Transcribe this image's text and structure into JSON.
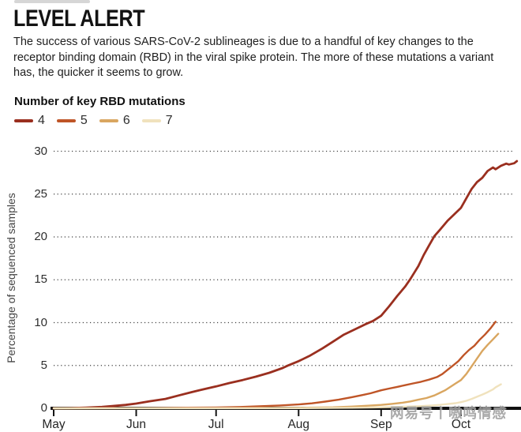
{
  "page": {
    "background": "#ffffff"
  },
  "header": {
    "title": "LEVEL ALERT",
    "subtitle": "The success of various SARS-CoV-2 sublineages is due to a handful of key changes to the receptor binding domain (RBD) in the viral spike protein. The more of these mutations a variant has, the quicker it seems to grow."
  },
  "legend": {
    "title": "Number of key RBD mutations",
    "items": [
      {
        "label": "4",
        "color": "#9a2f1f"
      },
      {
        "label": "5",
        "color": "#bf5527"
      },
      {
        "label": "6",
        "color": "#d9a660"
      },
      {
        "label": "7",
        "color": "#f0e2bd"
      }
    ]
  },
  "watermark": {
    "text": "网易号丨嗷鸣情感"
  },
  "chart_data": {
    "type": "line",
    "title": "LEVEL ALERT",
    "xlabel": "",
    "ylabel": "Percentage of sequenced samples",
    "x_unit": "days since 1 May",
    "xlim": [
      0,
      175
    ],
    "ylim": [
      0,
      30
    ],
    "grid": "dotted horizontal gridlines",
    "legend_position": "top-left above plot",
    "x_ticks": {
      "days": [
        0,
        31,
        61,
        92,
        123,
        153
      ],
      "labels": [
        "May",
        "Jun",
        "Jul",
        "Aug",
        "Sep",
        "Oct"
      ]
    },
    "y_ticks": [
      0,
      5,
      10,
      15,
      20,
      25,
      30
    ],
    "axis_color": "#101010",
    "series": [
      {
        "name": "4",
        "color": "#9a2f1f",
        "points": [
          [
            0,
            0
          ],
          [
            6,
            0.02
          ],
          [
            12,
            0.07
          ],
          [
            18,
            0.16
          ],
          [
            22,
            0.26
          ],
          [
            27,
            0.4
          ],
          [
            31,
            0.55
          ],
          [
            36,
            0.82
          ],
          [
            42,
            1.1
          ],
          [
            47,
            1.5
          ],
          [
            52,
            1.9
          ],
          [
            56,
            2.2
          ],
          [
            61,
            2.55
          ],
          [
            66,
            2.95
          ],
          [
            71,
            3.3
          ],
          [
            76,
            3.7
          ],
          [
            81,
            4.15
          ],
          [
            86,
            4.7
          ],
          [
            88,
            5.0
          ],
          [
            92,
            5.5
          ],
          [
            96,
            6.1
          ],
          [
            101,
            7.0
          ],
          [
            105,
            7.8
          ],
          [
            109,
            8.6
          ],
          [
            113,
            9.2
          ],
          [
            117,
            9.8
          ],
          [
            120,
            10.2
          ],
          [
            123,
            10.8
          ],
          [
            126,
            11.9
          ],
          [
            129,
            13.1
          ],
          [
            132,
            14.2
          ],
          [
            134,
            15.1
          ],
          [
            137,
            16.6
          ],
          [
            139,
            17.9
          ],
          [
            141,
            19.0
          ],
          [
            143,
            20.1
          ],
          [
            145,
            20.8
          ],
          [
            148,
            21.9
          ],
          [
            150,
            22.5
          ],
          [
            153,
            23.4
          ],
          [
            155,
            24.5
          ],
          [
            157,
            25.6
          ],
          [
            159,
            26.4
          ],
          [
            161,
            26.9
          ],
          [
            163,
            27.7
          ],
          [
            165,
            28.1
          ],
          [
            166,
            27.9
          ],
          [
            168,
            28.3
          ],
          [
            170,
            28.55
          ],
          [
            171,
            28.45
          ],
          [
            173,
            28.6
          ],
          [
            174,
            28.85
          ]
        ]
      },
      {
        "name": "5",
        "color": "#bf5527",
        "points": [
          [
            0,
            0
          ],
          [
            31,
            0.02
          ],
          [
            45,
            0.06
          ],
          [
            61,
            0.1
          ],
          [
            70,
            0.16
          ],
          [
            78,
            0.25
          ],
          [
            85,
            0.33
          ],
          [
            92,
            0.45
          ],
          [
            97,
            0.58
          ],
          [
            102,
            0.78
          ],
          [
            107,
            1.0
          ],
          [
            112,
            1.3
          ],
          [
            116,
            1.55
          ],
          [
            119,
            1.75
          ],
          [
            123,
            2.1
          ],
          [
            126,
            2.3
          ],
          [
            129,
            2.5
          ],
          [
            132,
            2.7
          ],
          [
            135,
            2.9
          ],
          [
            138,
            3.1
          ],
          [
            141,
            3.35
          ],
          [
            144,
            3.65
          ],
          [
            146,
            4.0
          ],
          [
            148,
            4.5
          ],
          [
            150,
            5.0
          ],
          [
            152,
            5.5
          ],
          [
            154,
            6.2
          ],
          [
            156,
            6.8
          ],
          [
            158,
            7.3
          ],
          [
            160,
            8.0
          ],
          [
            162,
            8.6
          ],
          [
            164,
            9.3
          ],
          [
            166,
            10.1
          ]
        ]
      },
      {
        "name": "6",
        "color": "#d9a660",
        "points": [
          [
            0,
            0
          ],
          [
            61,
            0.02
          ],
          [
            92,
            0.06
          ],
          [
            105,
            0.12
          ],
          [
            112,
            0.2
          ],
          [
            118,
            0.3
          ],
          [
            123,
            0.4
          ],
          [
            127,
            0.52
          ],
          [
            131,
            0.65
          ],
          [
            134,
            0.8
          ],
          [
            137,
            1.0
          ],
          [
            140,
            1.2
          ],
          [
            143,
            1.5
          ],
          [
            145,
            1.8
          ],
          [
            147,
            2.1
          ],
          [
            149,
            2.5
          ],
          [
            151,
            2.9
          ],
          [
            153,
            3.3
          ],
          [
            155,
            4.0
          ],
          [
            157,
            4.9
          ],
          [
            159,
            5.8
          ],
          [
            161,
            6.7
          ],
          [
            163,
            7.4
          ],
          [
            165,
            8.05
          ],
          [
            167,
            8.7
          ]
        ]
      },
      {
        "name": "7",
        "color": "#f0e2bd",
        "points": [
          [
            0,
            0
          ],
          [
            92,
            0.02
          ],
          [
            112,
            0.06
          ],
          [
            120,
            0.1
          ],
          [
            127,
            0.15
          ],
          [
            133,
            0.2
          ],
          [
            138,
            0.26
          ],
          [
            142,
            0.32
          ],
          [
            145,
            0.4
          ],
          [
            148,
            0.5
          ],
          [
            151,
            0.6
          ],
          [
            153,
            0.72
          ],
          [
            155,
            0.88
          ],
          [
            157,
            1.1
          ],
          [
            159,
            1.35
          ],
          [
            161,
            1.6
          ],
          [
            163,
            1.88
          ],
          [
            165,
            2.2
          ],
          [
            166,
            2.45
          ],
          [
            168,
            2.8
          ]
        ]
      }
    ]
  }
}
